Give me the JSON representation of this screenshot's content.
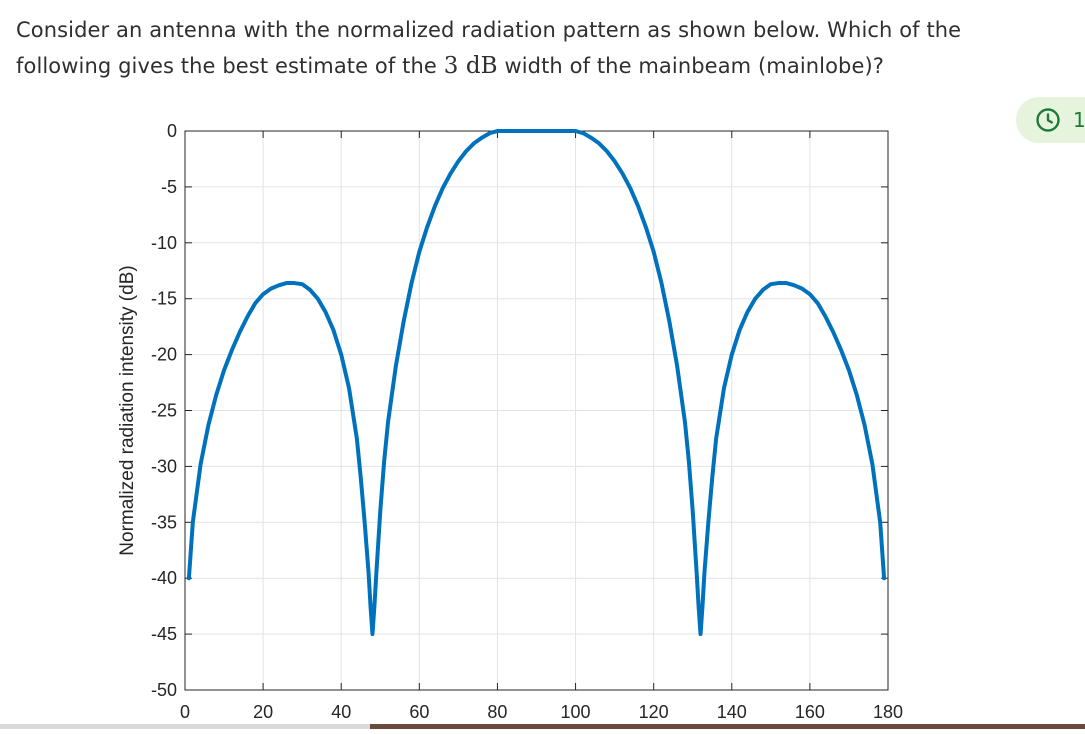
{
  "question": {
    "line1": "Consider an antenna with the normalized radiation pattern as shown below. Which of the",
    "line2_before": "following gives the best estimate of the ",
    "line2_math": "3 dB",
    "line2_after": " width of the mainbeam (mainlobe)?"
  },
  "timer": {
    "icon": "clock-icon",
    "text": "1",
    "accent_color": "#1f7a36",
    "background_color": "#e6f3dd"
  },
  "chart_data": {
    "type": "line",
    "title": "",
    "xlabel": "",
    "ylabel": "Normalized radiation intensity (dB)",
    "xlim": [
      0,
      180
    ],
    "ylim": [
      -50,
      0
    ],
    "xticks": [
      0,
      20,
      40,
      60,
      80,
      100,
      120,
      140,
      160,
      180
    ],
    "yticks": [
      0,
      -5,
      -10,
      -15,
      -20,
      -25,
      -30,
      -35,
      -40,
      -45,
      -50
    ],
    "xtick_labels": [
      "0",
      "20",
      "40",
      "60",
      "80",
      "100",
      "120",
      "140",
      "160",
      "180"
    ],
    "ytick_labels": [
      "0",
      "-5",
      "-10",
      "-15",
      "-20",
      "-25",
      "-30",
      "-35",
      "-40",
      "-45",
      "-50"
    ],
    "grid": true,
    "line_color": "#0072bd",
    "series": [
      {
        "x": [
          1,
          2,
          4,
          6,
          8,
          10,
          12,
          14,
          16,
          18,
          20,
          22,
          24,
          26,
          28,
          30,
          32,
          34,
          36,
          38,
          40,
          42,
          44,
          45,
          46,
          47,
          47.5,
          48,
          48.5,
          49,
          50,
          51,
          52,
          54,
          56,
          58,
          60,
          62,
          64,
          66,
          68,
          70,
          72,
          74,
          76,
          78,
          80,
          82,
          84,
          86,
          88,
          90,
          92,
          94,
          96,
          98,
          100,
          102,
          104,
          106,
          108,
          110,
          112,
          114,
          116,
          118,
          120,
          122,
          124,
          126,
          128,
          129,
          130,
          131,
          131.5,
          132,
          132.5,
          133,
          134,
          135,
          136,
          138,
          140,
          142,
          144,
          146,
          148,
          150,
          152,
          154,
          156,
          158,
          160,
          162,
          164,
          166,
          168,
          170,
          172,
          174,
          176,
          178,
          179
        ],
        "y": [
          -40,
          -35,
          -29.8,
          -26.3,
          -23.6,
          -21.4,
          -19.6,
          -18,
          -16.6,
          -15.4,
          -14.6,
          -14.1,
          -13.8,
          -13.6,
          -13.6,
          -13.7,
          -14.2,
          -15,
          -16.2,
          -17.8,
          -20,
          -23,
          -27.5,
          -31,
          -35,
          -39.5,
          -42.5,
          -45,
          -42.5,
          -39.5,
          -34,
          -29.5,
          -26,
          -21,
          -17,
          -13.6,
          -10.8,
          -8.6,
          -6.7,
          -5.1,
          -3.8,
          -2.7,
          -1.8,
          -1.1,
          -0.6,
          -0.2,
          0,
          0,
          0,
          0,
          0,
          0,
          0,
          0,
          0,
          0,
          0,
          -0.2,
          -0.6,
          -1.1,
          -1.8,
          -2.7,
          -3.8,
          -5.1,
          -6.7,
          -8.6,
          -10.8,
          -13.6,
          -17,
          -21,
          -26,
          -29.5,
          -34,
          -39.5,
          -42.5,
          -45,
          -42.5,
          -39.5,
          -35,
          -31,
          -27.5,
          -23,
          -20,
          -17.8,
          -16.2,
          -15,
          -14.2,
          -13.7,
          -13.6,
          -13.6,
          -13.8,
          -14.1,
          -14.6,
          -15.4,
          -16.6,
          -18,
          -19.6,
          -21.4,
          -23.6,
          -26.3,
          -29.8,
          -35,
          -40
        ]
      }
    ]
  }
}
